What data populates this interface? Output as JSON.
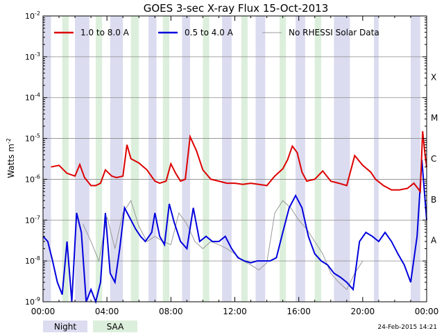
{
  "chart_data": {
    "type": "line",
    "title": "GOES 3-sec X-ray Flux   15-Oct-2013",
    "ylabel": "Watts m",
    "ylabel_sup": "-2",
    "y_scale": "log",
    "ylim": [
      1e-09,
      0.01
    ],
    "xlim": [
      0,
      24
    ],
    "x_unit": "hours (UT)",
    "x_tick_labels": [
      "00:00",
      "04:00",
      "08:00",
      "12:00",
      "16:00",
      "20:00",
      "00:00"
    ],
    "x_tick_values": [
      0,
      4,
      8,
      12,
      16,
      20,
      24
    ],
    "y_ticks": [
      {
        "base": "10",
        "exp": "-2",
        "value": 0.01
      },
      {
        "base": "10",
        "exp": "-3",
        "value": 0.001
      },
      {
        "base": "10",
        "exp": "-4",
        "value": 0.0001
      },
      {
        "base": "10",
        "exp": "-5",
        "value": 1e-05
      },
      {
        "base": "10",
        "exp": "-6",
        "value": 1e-06
      },
      {
        "base": "10",
        "exp": "-7",
        "value": 1e-07
      },
      {
        "base": "10",
        "exp": "-8",
        "value": 1e-08
      },
      {
        "base": "10",
        "exp": "-9",
        "value": 1e-09
      }
    ],
    "flare_classes": [
      {
        "label": "X",
        "value": 0.0001
      },
      {
        "label": "M",
        "value": 1e-05
      },
      {
        "label": "C",
        "value": 1e-06
      },
      {
        "label": "B",
        "value": 1e-07
      },
      {
        "label": "A",
        "value": 1e-08
      }
    ],
    "legend_position": "top",
    "series": [
      {
        "name": "1.0 to 8.0 A",
        "color": "#dd0000",
        "x": [
          0.5,
          1.0,
          1.5,
          2.0,
          2.3,
          2.6,
          3.0,
          3.3,
          3.6,
          3.9,
          4.3,
          4.6,
          5.0,
          5.25,
          5.5,
          6.0,
          6.5,
          7.0,
          7.3,
          7.7,
          8.0,
          8.3,
          8.6,
          8.9,
          9.2,
          9.6,
          10.0,
          10.5,
          11.0,
          11.5,
          12.0,
          12.5,
          13.0,
          13.5,
          14.0,
          14.5,
          15.0,
          15.3,
          15.6,
          15.9,
          16.2,
          16.5,
          17.0,
          17.5,
          18.0,
          18.5,
          19.0,
          19.5,
          20.0,
          20.5,
          20.8,
          21.3,
          21.8,
          22.3,
          22.8,
          23.2,
          23.6,
          23.75,
          23.9,
          24.0
        ],
        "y": [
          2e-06,
          2.2e-06,
          1.4e-06,
          1.2e-06,
          2.3e-06,
          1.1e-06,
          7e-07,
          7e-07,
          8e-07,
          1.7e-06,
          1.2e-06,
          1.1e-06,
          1.2e-06,
          7e-06,
          3.2e-06,
          2.5e-06,
          1.7e-06,
          9e-07,
          8e-07,
          9e-07,
          2.4e-06,
          1.4e-06,
          9e-07,
          1e-06,
          1.1e-05,
          5e-06,
          1.7e-06,
          1e-06,
          9e-07,
          8e-07,
          8e-07,
          7.5e-07,
          8e-07,
          7.5e-07,
          7e-07,
          1.2e-06,
          1.8e-06,
          3e-06,
          6.5e-06,
          4.5e-06,
          1.5e-06,
          9e-07,
          1e-06,
          1.6e-06,
          9e-07,
          8e-07,
          7e-07,
          3.8e-06,
          2.2e-06,
          1.5e-06,
          1e-06,
          7e-07,
          5.5e-07,
          5.5e-07,
          6e-07,
          8e-07,
          5e-07,
          1.5e-05,
          4e-06,
          2e-06
        ]
      },
      {
        "name": "0.5 to 4.0 A",
        "color": "#0000dd",
        "x": [
          0.0,
          0.3,
          0.6,
          0.9,
          1.2,
          1.5,
          1.8,
          2.1,
          2.4,
          2.7,
          3.0,
          3.3,
          3.6,
          3.9,
          4.2,
          4.5,
          4.8,
          5.1,
          5.4,
          5.8,
          6.1,
          6.4,
          6.8,
          7.0,
          7.3,
          7.6,
          7.9,
          8.2,
          8.6,
          9.0,
          9.4,
          9.8,
          10.2,
          10.6,
          11.0,
          11.4,
          11.8,
          12.2,
          12.6,
          13.0,
          13.4,
          13.8,
          14.2,
          14.6,
          15.0,
          15.4,
          15.8,
          16.2,
          16.6,
          17.0,
          17.4,
          17.8,
          18.2,
          18.6,
          19.0,
          19.4,
          19.8,
          20.2,
          20.6,
          21.0,
          21.4,
          21.8,
          22.2,
          22.6,
          23.0,
          23.4,
          23.7,
          24.0
        ],
        "y": [
          4e-08,
          3e-08,
          1e-08,
          3e-09,
          1.5e-09,
          3e-08,
          1e-09,
          1.5e-07,
          5e-08,
          1e-09,
          2e-09,
          1e-09,
          3e-09,
          1.5e-07,
          5e-09,
          3e-09,
          2e-08,
          2e-07,
          1.2e-07,
          6e-08,
          4e-08,
          3e-08,
          5e-08,
          1.5e-07,
          4e-08,
          2.5e-08,
          2.5e-07,
          9e-08,
          3e-08,
          2e-08,
          2e-07,
          3e-08,
          4e-08,
          3e-08,
          3e-08,
          4e-08,
          2e-08,
          1.2e-08,
          1e-08,
          9e-09,
          1e-08,
          1e-08,
          1e-08,
          1.2e-08,
          5e-08,
          2e-07,
          4e-07,
          2e-07,
          4e-08,
          1.5e-08,
          1e-08,
          8e-09,
          5e-09,
          4e-09,
          3e-09,
          2e-09,
          3e-08,
          5e-08,
          4e-08,
          3e-08,
          5e-08,
          3e-08,
          1.5e-08,
          8e-09,
          3e-09,
          4e-08,
          3e-06,
          1e-07
        ]
      },
      {
        "name": "No RHESSI Solar Data",
        "color": "#999999",
        "x": [
          2.5,
          3.0,
          3.5,
          4.0,
          4.5,
          5.0,
          5.5,
          6.0,
          6.5,
          7.0,
          7.5,
          8.0,
          8.5,
          9.0,
          9.5,
          10.0,
          10.5,
          11.0,
          11.5,
          12.0,
          12.5,
          13.0,
          13.5,
          14.0,
          14.5,
          15.0,
          15.5,
          16.0,
          16.5,
          17.0,
          17.5,
          18.0,
          18.5,
          19.0,
          19.5,
          20.0
        ],
        "y": [
          8e-08,
          3e-08,
          1e-08,
          1.2e-07,
          2e-08,
          1.5e-07,
          3e-07,
          7e-08,
          3e-08,
          4e-08,
          3e-08,
          2.5e-08,
          1.5e-07,
          8e-08,
          3e-08,
          2e-08,
          3e-08,
          2.5e-08,
          2e-08,
          1.5e-08,
          1e-08,
          8e-09,
          6e-09,
          9e-09,
          1.5e-07,
          3e-07,
          2e-07,
          1e-07,
          6e-08,
          3e-08,
          1.5e-08,
          5e-09,
          3e-09,
          2e-09,
          5e-09,
          1e-08
        ]
      }
    ],
    "night_bands_hours": [
      [
        0.0,
        0.5
      ],
      [
        2.0,
        2.9
      ],
      [
        4.2,
        5.0
      ],
      [
        6.6,
        7.1
      ],
      [
        8.7,
        9.2
      ],
      [
        11.2,
        11.8
      ],
      [
        13.3,
        13.9
      ],
      [
        15.8,
        16.4
      ],
      [
        18.2,
        19.2
      ],
      [
        20.7,
        21.0
      ],
      [
        23.0,
        23.6
      ]
    ],
    "saa_bands_hours": [
      [
        1.2,
        1.6
      ],
      [
        3.3,
        3.7
      ],
      [
        5.5,
        6.0
      ],
      [
        7.5,
        7.9
      ],
      [
        10.0,
        10.4
      ],
      [
        12.4,
        12.8
      ],
      [
        14.8,
        15.2
      ],
      [
        17.0,
        17.4
      ]
    ],
    "footer_legend": [
      {
        "label": "Night",
        "color": "#dcdcf0"
      },
      {
        "label": "SAA",
        "color": "#dcefdc"
      }
    ],
    "timestamp": "24-Feb-2015 14:21"
  }
}
